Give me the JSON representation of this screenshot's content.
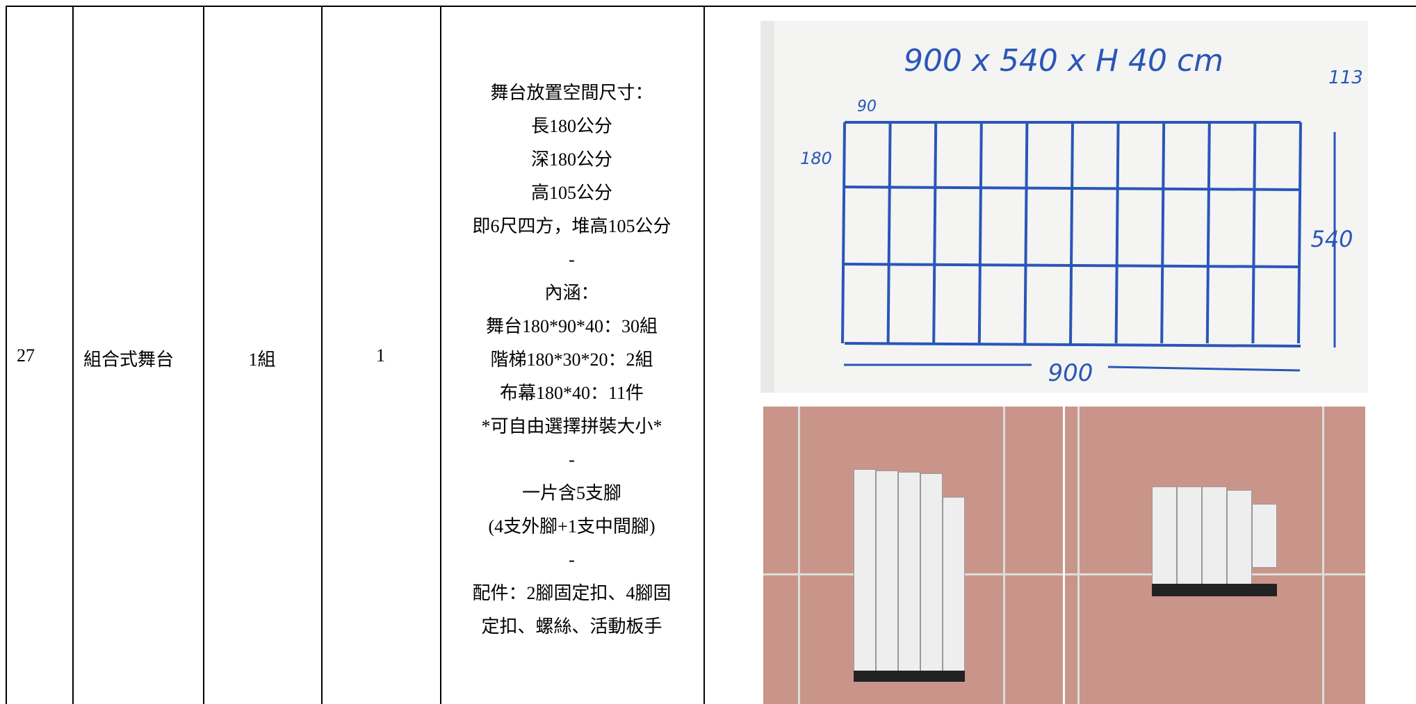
{
  "row": {
    "number": "27",
    "name": "組合式舞台",
    "unit": "1組",
    "quantity": "1",
    "description": [
      "舞台放置空間尺寸：",
      "長180公分",
      "深180公分",
      "高105公分",
      "即6尺四方，堆高105公分",
      "-",
      "內涵：",
      "舞台180*90*40：30組",
      "階梯180*30*20：2組",
      "布幕180*40：11件",
      "*可自由選擇拼裝大小*",
      "-",
      "一片含5支腳",
      "(4支外腳+1支中間腳)",
      "-",
      "配件：2腳固定扣、4腳固",
      "定扣、螺絲、活動板手"
    ]
  },
  "whiteboard": {
    "title": "900 x 540 x H 40 cm",
    "corner": "113",
    "labels": [
      "90",
      "180",
      "540",
      "900"
    ]
  }
}
